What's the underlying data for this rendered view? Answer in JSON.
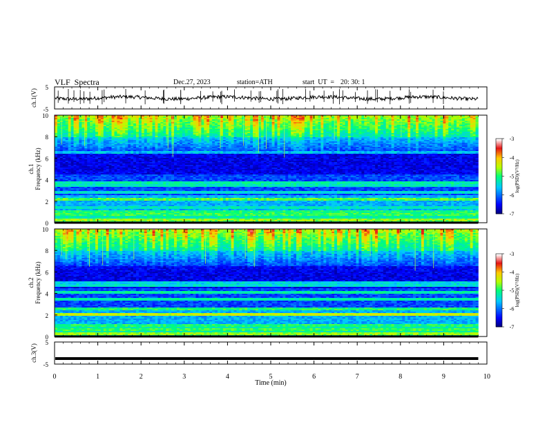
{
  "header": {
    "title": "VLF  Spectra",
    "date": "Dec.27, 2023",
    "station": "station=ATH",
    "start_label": "start  UT  =",
    "start_time": "20: 30: 1"
  },
  "chart_data": [
    {
      "type": "line",
      "panel": "ch1-waveform",
      "ylabel": "ch.1(V)",
      "ylim": [
        -5,
        5
      ],
      "yticks": [
        "5",
        "-5"
      ],
      "baseline": 0,
      "xlim": [
        0,
        10
      ],
      "color": "#000000"
    },
    {
      "type": "heatmap",
      "panel": "ch1-spectrogram",
      "ylabel": "ch.1\nFrequency (kHz)",
      "ylim": [
        0,
        10
      ],
      "yticks": [
        "0",
        "2",
        "4",
        "6",
        "8",
        "10"
      ],
      "xlim": [
        0,
        9.8
      ],
      "colorbar": {
        "label": "log(PSD)(V²/Hz)",
        "range": [
          -7,
          -3
        ],
        "ticks": [
          "-3",
          "-4",
          "-5",
          "-6",
          "-7"
        ]
      },
      "bands_khz": [
        {
          "f": 0.3,
          "psd": -4.6
        },
        {
          "f": 0.8,
          "psd": -4.9
        },
        {
          "f": 1.0,
          "psd": -5.0
        },
        {
          "f": 1.4,
          "psd": -5.3
        },
        {
          "f": 2.2,
          "psd": -4.8
        },
        {
          "f": 2.8,
          "psd": -5.4
        },
        {
          "f": 3.4,
          "psd": -5.3
        },
        {
          "f": 3.7,
          "psd": -5.2
        },
        {
          "f": 6.6,
          "psd": -5.7
        }
      ]
    },
    {
      "type": "heatmap",
      "panel": "ch2-spectrogram",
      "ylabel": "ch.2\nFrequency (kHz)",
      "ylim": [
        0,
        10
      ],
      "yticks": [
        "0",
        "2",
        "4",
        "6",
        "8",
        "10"
      ],
      "xlim": [
        0,
        9.8
      ],
      "colorbar": {
        "label": "log(PSD)(V²/Hz)",
        "range": [
          -7,
          -3
        ],
        "ticks": [
          "-3",
          "-4",
          "-5",
          "-6",
          "-7"
        ]
      },
      "bands_khz": [
        {
          "f": 0.3,
          "psd": -4.6
        },
        {
          "f": 0.7,
          "psd": -4.9
        },
        {
          "f": 1.0,
          "psd": -5.0
        },
        {
          "f": 2.0,
          "psd": -4.4
        },
        {
          "f": 2.6,
          "psd": -5.0
        },
        {
          "f": 3.4,
          "psd": -5.2
        },
        {
          "f": 4.1,
          "psd": -5.2
        },
        {
          "f": 4.8,
          "psd": -5.4
        },
        {
          "f": 5.0,
          "psd": -5.5
        }
      ]
    },
    {
      "type": "line",
      "panel": "ch3-waveform",
      "ylabel": "ch.3(V)",
      "ylim": [
        -5,
        5
      ],
      "yticks": [
        "5",
        "-5"
      ],
      "baseline": -2.5,
      "xlim": [
        0,
        10
      ],
      "color": "#000000"
    }
  ],
  "x_axis": {
    "label": "Time  (min)",
    "range": [
      0,
      10
    ],
    "ticks": [
      "0",
      "1",
      "2",
      "3",
      "4",
      "5",
      "6",
      "7",
      "8",
      "9",
      "10"
    ]
  },
  "colors": {
    "axis": "#000000",
    "background": "#ffffff"
  }
}
